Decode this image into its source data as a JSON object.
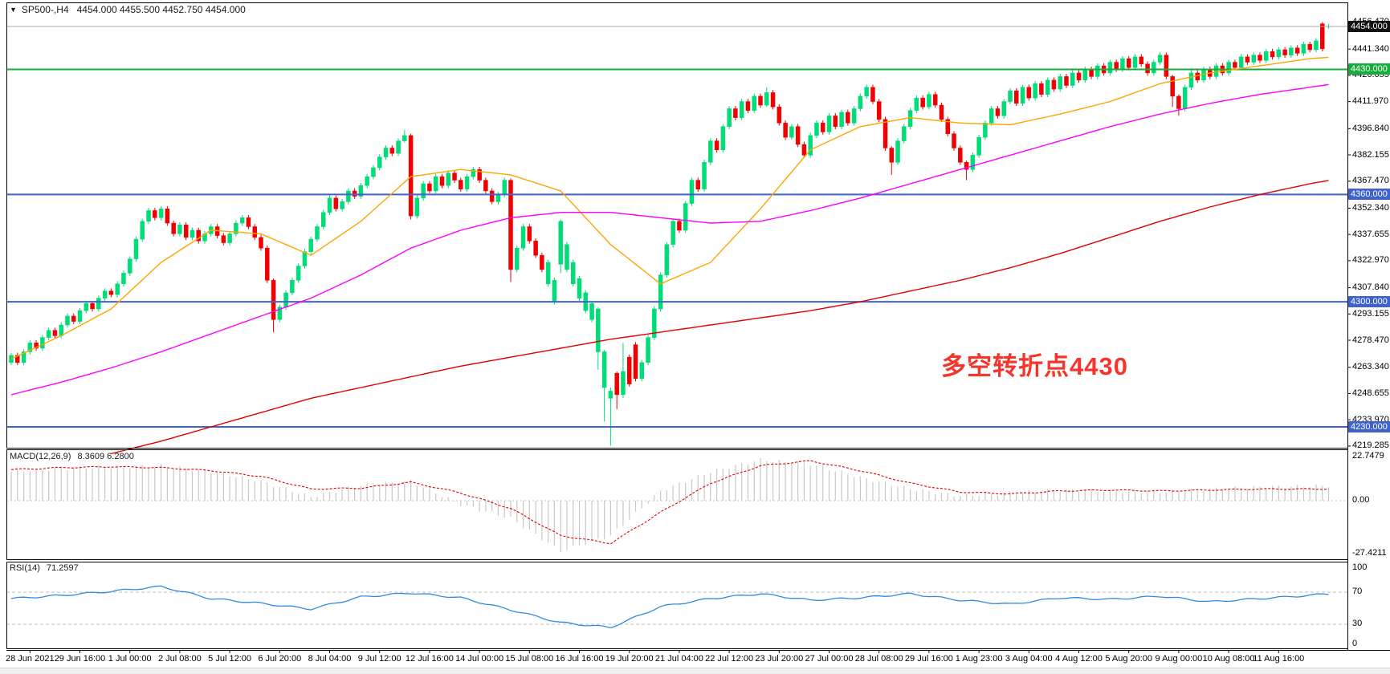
{
  "title": {
    "symbol_period": "SP500-,H4",
    "ohlc": "4454.000 4455.500 4452.750 4454.000"
  },
  "icons": {
    "dropdown": "▼"
  },
  "annotation": {
    "text": "多空转折点4430",
    "color": "#f5352c"
  },
  "colors": {
    "bull": "#00dc78",
    "bear": "#f00000",
    "ma_fast": "#ffa500",
    "ma_mid": "#ff00ff",
    "ma_slow": "#e00000",
    "line_green": "#14ae3c",
    "line_blue": "#3f63ce",
    "current_price_line": "#a8a8a8",
    "macd_hist": "#c8c8c8",
    "macd_signal": "#e00000",
    "rsi_line": "#2f8be0",
    "badge_current_bg": "#111111",
    "badge_green_bg": "#14ae3c",
    "badge_blue_bg": "#3f63ce"
  },
  "macd": {
    "label": "MACD(12,26,9)",
    "values_text": "8.3609 6.2800",
    "axis": [
      "22.7479",
      "0.00",
      "-27.4211"
    ]
  },
  "rsi": {
    "label": "RSI(14)",
    "value_text": "71.2597",
    "axis": [
      "100",
      "70",
      "30",
      "0"
    ]
  },
  "chart_data": {
    "type": "candlestick",
    "symbol": "SP500-",
    "timeframe": "H4",
    "current_ohlc": {
      "open": 4454.0,
      "high": 4455.5,
      "low": 4452.75,
      "close": 4454.0
    },
    "ylim": [
      4218,
      4467
    ],
    "price_axis_ticks": [
      "4456.470",
      "4441.340",
      "4426.655",
      "4411.970",
      "4396.840",
      "4382.155",
      "4367.470",
      "4352.340",
      "4337.655",
      "4322.970",
      "4307.840",
      "4293.155",
      "4278.470",
      "4263.340",
      "4248.655",
      "4233.970",
      "4219.285"
    ],
    "price_badges": [
      {
        "price": 4454.0,
        "text": "4454.000",
        "type": "current"
      },
      {
        "price": 4430.0,
        "text": "4430.000",
        "type": "green"
      },
      {
        "price": 4360.0,
        "text": "4360.000",
        "type": "blue"
      },
      {
        "price": 4300.0,
        "text": "4300.000",
        "type": "blue"
      },
      {
        "price": 4230.0,
        "text": "4230.000",
        "type": "blue"
      }
    ],
    "hlines": [
      {
        "value": 4454.0,
        "kind": "current"
      },
      {
        "value": 4430.0,
        "kind": "green"
      },
      {
        "value": 4360.0,
        "kind": "blue"
      },
      {
        "value": 4300.0,
        "kind": "blue"
      },
      {
        "value": 4230.0,
        "kind": "blue"
      }
    ],
    "x_tick_labels": [
      "28 Jun 2021",
      "29 Jun 16:00",
      "1 Jul 00:00",
      "2 Jul 08:00",
      "5 Jul 12:00",
      "6 Jul 20:00",
      "8 Jul 04:00",
      "9 Jul 12:00",
      "12 Jul 16:00",
      "14 Jul 00:00",
      "15 Jul 08:00",
      "16 Jul 16:00",
      "19 Jul 20:00",
      "21 Jul 04:00",
      "22 Jul 12:00",
      "23 Jul 20:00",
      "27 Jul 00:00",
      "28 Jul 08:00",
      "29 Jul 16:00",
      "1 Aug 23:00",
      "3 Aug 04:00",
      "4 Aug 12:00",
      "5 Aug 20:00",
      "9 Aug 00:00",
      "10 Aug 08:00",
      "11 Aug 16:00"
    ],
    "candles_per_tick": 8,
    "candles_oc": [
      [
        4266,
        4270
      ],
      [
        4270,
        4266
      ],
      [
        4266,
        4272
      ],
      [
        4272,
        4277
      ],
      [
        4277,
        4274
      ],
      [
        4274,
        4280
      ],
      [
        4280,
        4284
      ],
      [
        4284,
        4281
      ],
      [
        4281,
        4287
      ],
      [
        4287,
        4292
      ],
      [
        4292,
        4289
      ],
      [
        4289,
        4295
      ],
      [
        4295,
        4299
      ],
      [
        4299,
        4296
      ],
      [
        4296,
        4302
      ],
      [
        4302,
        4306
      ],
      [
        4306,
        4304
      ],
      [
        4304,
        4310
      ],
      [
        4310,
        4316
      ],
      [
        4316,
        4324
      ],
      [
        4324,
        4335
      ],
      [
        4335,
        4345
      ],
      [
        4345,
        4351
      ],
      [
        4351,
        4347
      ],
      [
        4347,
        4352
      ],
      [
        4352,
        4344
      ],
      [
        4344,
        4338
      ],
      [
        4338,
        4343
      ],
      [
        4343,
        4336
      ],
      [
        4336,
        4340
      ],
      [
        4340,
        4334
      ],
      [
        4334,
        4338
      ],
      [
        4338,
        4342
      ],
      [
        4342,
        4337
      ],
      [
        4337,
        4333
      ],
      [
        4333,
        4338
      ],
      [
        4338,
        4344
      ],
      [
        4344,
        4347
      ],
      [
        4347,
        4342
      ],
      [
        4342,
        4336
      ],
      [
        4336,
        4330
      ],
      [
        4330,
        4312
      ],
      [
        4312,
        4290
      ],
      [
        4290,
        4297
      ],
      [
        4297,
        4305
      ],
      [
        4305,
        4312
      ],
      [
        4312,
        4320
      ],
      [
        4320,
        4328
      ],
      [
        4328,
        4335
      ],
      [
        4335,
        4342
      ],
      [
        4342,
        4350
      ],
      [
        4350,
        4358
      ],
      [
        4358,
        4352
      ],
      [
        4352,
        4356
      ],
      [
        4356,
        4362
      ],
      [
        4362,
        4359
      ],
      [
        4359,
        4365
      ],
      [
        4365,
        4370
      ],
      [
        4370,
        4375
      ],
      [
        4375,
        4381
      ],
      [
        4381,
        4386
      ],
      [
        4386,
        4383
      ],
      [
        4383,
        4390
      ],
      [
        4390,
        4393
      ],
      [
        4393,
        4348
      ],
      [
        4348,
        4358
      ],
      [
        4358,
        4366
      ],
      [
        4366,
        4362
      ],
      [
        4362,
        4370
      ],
      [
        4370,
        4365
      ],
      [
        4365,
        4372
      ],
      [
        4372,
        4368
      ],
      [
        4368,
        4363
      ],
      [
        4363,
        4370
      ],
      [
        4370,
        4374
      ],
      [
        4374,
        4368
      ],
      [
        4368,
        4362
      ],
      [
        4362,
        4356
      ],
      [
        4356,
        4360
      ],
      [
        4360,
        4368
      ],
      [
        4368,
        4318
      ],
      [
        4318,
        4330
      ],
      [
        4330,
        4342
      ],
      [
        4342,
        4334
      ],
      [
        4334,
        4326
      ],
      [
        4326,
        4318
      ],
      [
        4310,
        4322
      ],
      [
        4300,
        4312
      ],
      [
        4321,
        4345
      ],
      [
        4318,
        4332
      ],
      [
        4310,
        4322
      ],
      [
        4302,
        4313
      ],
      [
        4295,
        4305
      ],
      [
        4290,
        4299
      ],
      [
        4272,
        4296
      ],
      [
        4252,
        4272
      ],
      [
        4246,
        4250
      ],
      [
        4260,
        4248
      ],
      [
        4248,
        4261
      ],
      [
        4269,
        4254
      ],
      [
        4276,
        4257
      ],
      [
        4257,
        4266
      ],
      [
        4266,
        4280
      ],
      [
        4280,
        4296
      ],
      [
        4296,
        4315
      ],
      [
        4315,
        4332
      ],
      [
        4332,
        4345
      ],
      [
        4345,
        4340
      ],
      [
        4340,
        4355
      ],
      [
        4355,
        4368
      ],
      [
        4368,
        4363
      ],
      [
        4363,
        4378
      ],
      [
        4378,
        4390
      ],
      [
        4390,
        4385
      ],
      [
        4385,
        4398
      ],
      [
        4398,
        4408
      ],
      [
        4408,
        4403
      ],
      [
        4403,
        4412
      ],
      [
        4412,
        4407
      ],
      [
        4407,
        4415
      ],
      [
        4415,
        4410
      ],
      [
        4410,
        4417
      ],
      [
        4417,
        4409
      ],
      [
        4409,
        4400
      ],
      [
        4400,
        4392
      ],
      [
        4392,
        4398
      ],
      [
        4398,
        4388
      ],
      [
        4388,
        4382
      ],
      [
        4382,
        4393
      ],
      [
        4393,
        4400
      ],
      [
        4400,
        4395
      ],
      [
        4395,
        4404
      ],
      [
        4404,
        4398
      ],
      [
        4398,
        4406
      ],
      [
        4406,
        4400
      ],
      [
        4400,
        4408
      ],
      [
        4408,
        4415
      ],
      [
        4415,
        4420
      ],
      [
        4420,
        4412
      ],
      [
        4412,
        4402
      ],
      [
        4402,
        4386
      ],
      [
        4386,
        4378
      ],
      [
        4378,
        4390
      ],
      [
        4390,
        4398
      ],
      [
        4398,
        4407
      ],
      [
        4407,
        4414
      ],
      [
        4414,
        4409
      ],
      [
        4409,
        4416
      ],
      [
        4416,
        4410
      ],
      [
        4410,
        4402
      ],
      [
        4402,
        4394
      ],
      [
        4394,
        4386
      ],
      [
        4386,
        4378
      ],
      [
        4378,
        4374
      ],
      [
        4374,
        4382
      ],
      [
        4382,
        4392
      ],
      [
        4392,
        4400
      ],
      [
        4400,
        4408
      ],
      [
        4408,
        4404
      ],
      [
        4404,
        4412
      ],
      [
        4412,
        4418
      ],
      [
        4418,
        4411
      ],
      [
        4411,
        4420
      ],
      [
        4420,
        4414
      ],
      [
        4414,
        4422
      ],
      [
        4422,
        4416
      ],
      [
        4416,
        4424
      ],
      [
        4424,
        4419
      ],
      [
        4419,
        4426
      ],
      [
        4426,
        4421
      ],
      [
        4421,
        4428
      ],
      [
        4428,
        4424
      ],
      [
        4424,
        4430
      ],
      [
        4430,
        4426
      ],
      [
        4426,
        4432
      ],
      [
        4432,
        4428
      ],
      [
        4428,
        4434
      ],
      [
        4434,
        4430
      ],
      [
        4430,
        4436
      ],
      [
        4436,
        4431
      ],
      [
        4431,
        4437
      ],
      [
        4437,
        4433
      ],
      [
        4433,
        4428
      ],
      [
        4428,
        4434
      ],
      [
        4434,
        4438
      ],
      [
        4438,
        4426
      ],
      [
        4426,
        4415
      ],
      [
        4415,
        4408
      ],
      [
        4408,
        4420
      ],
      [
        4420,
        4428
      ],
      [
        4428,
        4424
      ],
      [
        4424,
        4430
      ],
      [
        4430,
        4426
      ],
      [
        4426,
        4432
      ],
      [
        4432,
        4428
      ],
      [
        4428,
        4434
      ],
      [
        4434,
        4431
      ],
      [
        4431,
        4437
      ],
      [
        4437,
        4434
      ],
      [
        4434,
        4438
      ],
      [
        4438,
        4435
      ],
      [
        4435,
        4440
      ],
      [
        4440,
        4437
      ],
      [
        4437,
        4441
      ],
      [
        4441,
        4438
      ],
      [
        4438,
        4442
      ],
      [
        4442,
        4439
      ],
      [
        4439,
        4444
      ],
      [
        4444,
        4441
      ],
      [
        4441,
        4446
      ],
      [
        4455.5,
        4441.5
      ],
      [
        4454,
        4454
      ]
    ],
    "default_wick": 1.5,
    "wick_overrides": {
      "42": [
        4313,
        4283
      ],
      "63": [
        4396,
        4389
      ],
      "64": [
        4394,
        4346
      ],
      "80": [
        4369,
        4311
      ],
      "88": [
        4346,
        4316
      ],
      "94": [
        4297,
        4262
      ],
      "95": [
        4273,
        4233
      ],
      "96": [
        4252,
        4219.5
      ],
      "97": [
        4261,
        4240
      ],
      "98": [
        4277,
        4246
      ],
      "121": [
        4420,
        4409
      ],
      "141": [
        4387,
        4371
      ],
      "153": [
        4379,
        4368
      ],
      "186": [
        4427,
        4409
      ],
      "187": [
        4416,
        4404
      ],
      "210": [
        4456.4,
        4440
      ],
      "211": [
        4455.5,
        4452.75
      ]
    },
    "moving_averages": [
      {
        "name": "ma-fast-orange",
        "sample_step": 8,
        "samples": [
          4268,
          4281,
          4296,
          4322,
          4340,
          4338,
          4326,
          4345,
          4370,
          4374,
          4371,
          4362,
          4332,
          4310,
          4322,
          4352,
          4385,
          4398,
          4403,
          4400,
          4399,
          4405,
          4412,
          4422,
          4428,
          4432,
          4436,
          4438
        ]
      },
      {
        "name": "ma-mid-magenta",
        "sample_step": 8,
        "samples": [
          4248,
          4255,
          4263,
          4272,
          4282,
          4292,
          4302,
          4315,
          4330,
          4340,
          4347,
          4350,
          4350,
          4347,
          4344,
          4345,
          4351,
          4358,
          4366,
          4374,
          4382,
          4390,
          4398,
          4405,
          4411,
          4416,
          4420,
          4424
        ]
      },
      {
        "name": "ma-slow-red",
        "sample_step": 8,
        "samples": [
          null,
          null,
          4215,
          4222,
          4230,
          4238,
          4246,
          4252,
          4258,
          4264,
          4269,
          4274,
          4279,
          4283,
          4287,
          4291,
          4295,
          4300,
          4306,
          4312,
          4319,
          4327,
          4336,
          4345,
          4353,
          4360,
          4366,
          4371
        ]
      }
    ],
    "indicators": [
      {
        "name": "MACD",
        "params": [
          12,
          26,
          9
        ],
        "current_macd": 8.3609,
        "current_signal": 6.28,
        "axis_max": 22.7479,
        "axis_min": -27.4211,
        "sample_step": 8,
        "hist_samples": [
          15,
          16.5,
          17.5,
          18,
          15,
          10,
          2,
          8,
          10,
          -2,
          -9,
          -26,
          -18,
          5,
          15,
          21,
          19,
          12,
          6,
          2.5,
          4,
          5.5,
          5,
          4.5,
          6,
          7,
          7.5,
          8.4
        ],
        "signal_samples": [
          16,
          17,
          17.5,
          17,
          15.5,
          12.5,
          6,
          6.5,
          9.5,
          4,
          -4,
          -18,
          -22,
          -6,
          9,
          18,
          20.5,
          15.5,
          9,
          4.5,
          3.5,
          5,
          5.5,
          5,
          5.5,
          6,
          6.0,
          6.3
        ]
      },
      {
        "name": "RSI",
        "params": [
          14
        ],
        "current": 71.2597,
        "levels": [
          70,
          30
        ],
        "axis_range": [
          0,
          100
        ],
        "sample_step": 8,
        "samples": [
          62,
          66,
          71,
          77,
          62,
          56,
          49,
          64,
          69,
          63,
          48,
          32,
          26,
          52,
          62,
          68,
          60,
          63,
          68,
          60,
          55,
          63,
          61,
          65,
          58,
          62,
          66,
          71.3
        ]
      }
    ]
  }
}
